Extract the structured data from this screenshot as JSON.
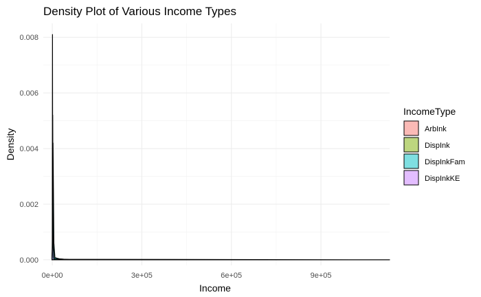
{
  "chart_data": {
    "type": "area",
    "title": "Density Plot of Various Income Types",
    "xlabel": "Income",
    "ylabel": "Density",
    "xlim": [
      -30000,
      1130000
    ],
    "ylim": [
      -0.0002,
      0.0085
    ],
    "x_ticks": [
      0,
      300000,
      600000,
      900000
    ],
    "x_tick_labels": [
      "0e+00",
      "3e+05",
      "6e+05",
      "9e+05"
    ],
    "y_ticks": [
      0,
      0.002,
      0.004,
      0.006,
      0.008
    ],
    "y_tick_labels": [
      "0.000",
      "0.002",
      "0.004",
      "0.006",
      "0.008"
    ],
    "grid": true,
    "legend": {
      "title": "IncomeType",
      "placement": "right"
    },
    "series": [
      {
        "name": "ArbInk",
        "color": "#F8766D",
        "points": [
          [
            -1000,
            0
          ],
          [
            0,
            0.0002
          ],
          [
            800,
            0.0081
          ],
          [
            1600,
            0.0012
          ],
          [
            2600,
            0.0001
          ],
          [
            6000,
            2e-05
          ],
          [
            60000,
            0
          ]
        ]
      },
      {
        "name": "DispInk",
        "color": "#7CAE00",
        "points": [
          [
            -1000,
            0
          ],
          [
            0,
            0.0003
          ],
          [
            1500,
            0.0052
          ],
          [
            3000,
            0.0009
          ],
          [
            5000,
            5e-05
          ],
          [
            60000,
            0
          ]
        ]
      },
      {
        "name": "DispInkFam",
        "color": "#00BFC4",
        "points": [
          [
            -1000,
            0
          ],
          [
            0,
            0.0004
          ],
          [
            2600,
            0.0042
          ],
          [
            5500,
            0.0006
          ],
          [
            9000,
            8e-05
          ],
          [
            25000,
            3e-05
          ],
          [
            55000,
            1e-05
          ],
          [
            120000,
            0
          ]
        ]
      },
      {
        "name": "DispInkKE",
        "color": "#C77CFF",
        "points": [
          [
            -1000,
            0
          ],
          [
            0,
            0.0002
          ],
          [
            1200,
            0.0024
          ],
          [
            2500,
            0.0005
          ],
          [
            6000,
            2e-05
          ],
          [
            1130000,
            0
          ]
        ]
      }
    ]
  }
}
